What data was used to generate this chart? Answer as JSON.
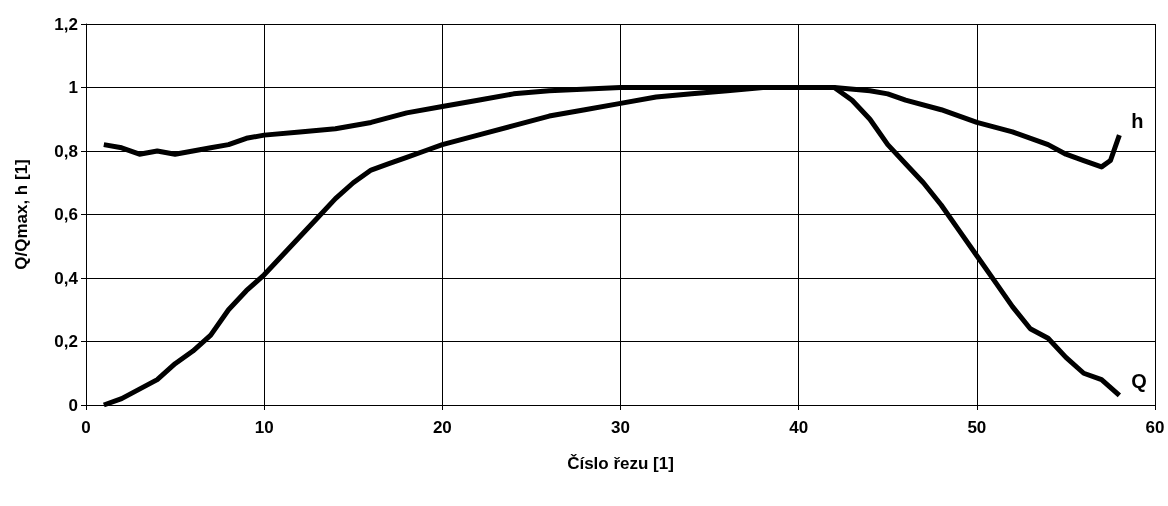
{
  "chart_data": {
    "type": "line",
    "xlabel": "Číslo řezu [1]",
    "ylabel": "Q/Qmax, h [1]",
    "xlim": [
      0,
      60
    ],
    "xticks": [
      0,
      10,
      20,
      30,
      40,
      50,
      60
    ],
    "ylim": [
      0,
      1.2
    ],
    "yticks": [
      0,
      {
        "value": 0.2,
        "label": "0,2"
      },
      {
        "value": 0.4,
        "label": "0,4"
      },
      {
        "value": 0.6,
        "label": "0,6"
      },
      {
        "value": 0.8,
        "label": "0,8"
      },
      1,
      {
        "value": 1.2,
        "label": "1,2"
      }
    ],
    "grid": true,
    "legend": false,
    "marker": "none",
    "line_style": "solid",
    "series": [
      {
        "name": "h",
        "color": "#000000",
        "x": [
          1,
          2,
          3,
          4,
          5,
          6,
          7,
          8,
          9,
          10,
          12,
          14,
          16,
          18,
          20,
          22,
          24,
          26,
          30,
          35,
          40,
          42,
          44,
          45,
          46,
          48,
          50,
          52,
          54,
          55,
          56,
          57,
          57.5,
          58
        ],
        "values": [
          0.82,
          0.81,
          0.79,
          0.8,
          0.79,
          0.8,
          0.81,
          0.82,
          0.84,
          0.85,
          0.86,
          0.87,
          0.89,
          0.92,
          0.94,
          0.96,
          0.98,
          0.99,
          1.0,
          1.0,
          1.0,
          1.0,
          0.99,
          0.98,
          0.96,
          0.93,
          0.89,
          0.86,
          0.82,
          0.79,
          0.77,
          0.75,
          0.77,
          0.85
        ]
      },
      {
        "name": "Q",
        "color": "#000000",
        "x": [
          1,
          2,
          3,
          4,
          5,
          6,
          7,
          8,
          9,
          10,
          11,
          12,
          13,
          14,
          15,
          16,
          17,
          18,
          19,
          20,
          22,
          24,
          26,
          28,
          30,
          32,
          34,
          36,
          38,
          40,
          42,
          43,
          44,
          45,
          46,
          47,
          48,
          49,
          50,
          51,
          52,
          53,
          54,
          55,
          56,
          57,
          58
        ],
        "values": [
          0.0,
          0.02,
          0.05,
          0.08,
          0.13,
          0.17,
          0.22,
          0.3,
          0.36,
          0.41,
          0.47,
          0.53,
          0.59,
          0.65,
          0.7,
          0.74,
          0.76,
          0.78,
          0.8,
          0.82,
          0.85,
          0.88,
          0.91,
          0.93,
          0.95,
          0.97,
          0.98,
          0.99,
          1.0,
          1.0,
          1.0,
          0.96,
          0.9,
          0.82,
          0.76,
          0.7,
          0.63,
          0.55,
          0.47,
          0.39,
          0.31,
          0.24,
          0.21,
          0.15,
          0.1,
          0.08,
          0.03
        ]
      }
    ]
  }
}
